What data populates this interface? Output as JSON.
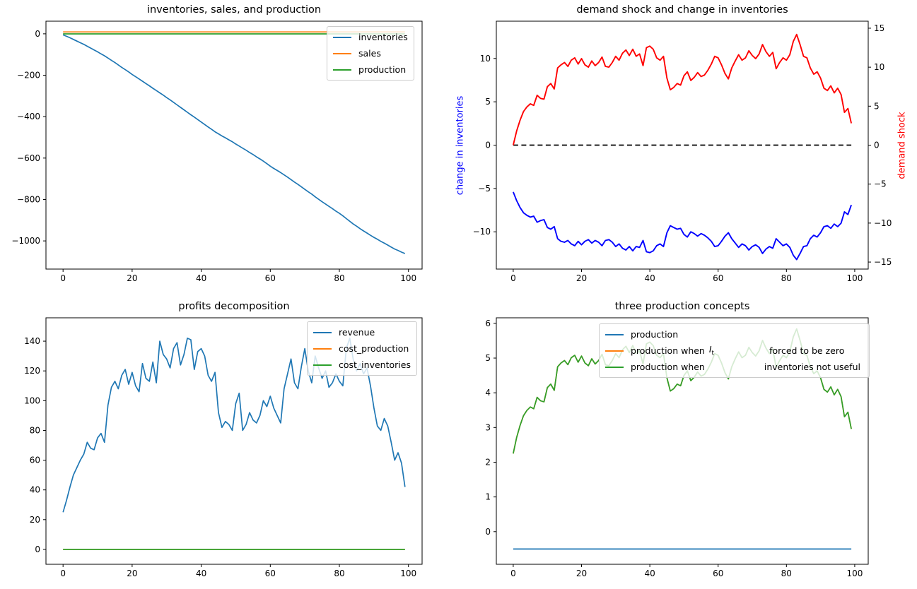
{
  "figure_background": "#ffffff",
  "palette": {
    "mpl_blue": "#1f77b4",
    "mpl_orange": "#ff7f0e",
    "mpl_green": "#2ca02c",
    "pure_red": "#ff0000",
    "pure_blue": "#0000ff",
    "black": "#000000"
  },
  "chart_data": [
    {
      "id": "inventories-sales-production",
      "type": "line",
      "title": "inventories, sales, and production",
      "xlim": [
        -4.95,
        103.95
      ],
      "ylim": [
        -1136,
        61
      ],
      "xticks": [
        0,
        20,
        40,
        60,
        80,
        100
      ],
      "yticks": [
        0,
        -200,
        -400,
        -600,
        -800,
        -1000
      ],
      "legend_position": "upper right",
      "legend": [
        {
          "label": "inventories",
          "color": "#1f77b4"
        },
        {
          "label": "sales",
          "color": "#ff7f0e"
        },
        {
          "label": "production",
          "color": "#2ca02c"
        }
      ],
      "series": [
        {
          "name": "inventories",
          "color": "#1f77b4",
          "values": [
            -5,
            -12,
            -19,
            -27,
            -35,
            -43,
            -51,
            -60,
            -69,
            -78,
            -87,
            -97,
            -106,
            -117,
            -128,
            -139,
            -150,
            -162,
            -173,
            -184,
            -196,
            -207,
            -218,
            -229,
            -240,
            -251,
            -263,
            -274,
            -285,
            -296,
            -308,
            -319,
            -331,
            -343,
            -355,
            -367,
            -379,
            -391,
            -402,
            -414,
            -426,
            -438,
            -450,
            -461,
            -473,
            -483,
            -493,
            -502,
            -512,
            -521,
            -532,
            -542,
            -552,
            -562,
            -573,
            -583,
            -594,
            -604,
            -615,
            -627,
            -639,
            -650,
            -660,
            -670,
            -681,
            -692,
            -704,
            -716,
            -727,
            -739,
            -751,
            -763,
            -774,
            -787,
            -799,
            -811,
            -822,
            -833,
            -844,
            -856,
            -867,
            -879,
            -892,
            -905,
            -918,
            -929,
            -941,
            -952,
            -962,
            -973,
            -983,
            -992,
            -1002,
            -1011,
            -1020,
            -1030,
            -1039,
            -1046,
            -1054,
            -1061
          ]
        },
        {
          "name": "sales",
          "color": "#ff7f0e",
          "const": 9,
          "n": 100
        },
        {
          "name": "production",
          "color": "#2ca02c",
          "const": -0.5,
          "n": 100
        }
      ]
    },
    {
      "id": "demand-shock-and-change-in-inventories",
      "type": "line",
      "title": "demand shock and change in inventories",
      "xlim": [
        -4.95,
        103.95
      ],
      "xticks": [
        0,
        20,
        40,
        60,
        80,
        100
      ],
      "left_axis": {
        "label": "change in inventories",
        "label_color": "#0000ff",
        "ylim": [
          -14.3,
          14.3
        ],
        "ticks": [
          10,
          5,
          0,
          -5,
          -10
        ]
      },
      "right_axis": {
        "label": "demand shock",
        "label_color": "#ff0000",
        "ylim": [
          -15.9,
          15.9
        ],
        "ticks": [
          15,
          10,
          5,
          0,
          -5,
          -10,
          -15
        ]
      },
      "series": [
        {
          "name": "zero line",
          "color": "#000000",
          "style": "dashed",
          "axis": "left",
          "width": 1.7,
          "const": 0,
          "n": 100
        },
        {
          "name": "demand shock",
          "color": "#ff0000",
          "axis": "right",
          "width": 1.9,
          "values": [
            0,
            1.8,
            3.2,
            4.3,
            4.9,
            5.3,
            5.1,
            6.4,
            6,
            5.9,
            7.5,
            7.9,
            7.2,
            9.9,
            10.3,
            10.6,
            10.1,
            10.9,
            11.2,
            10.4,
            11.1,
            10.3,
            10,
            10.8,
            10.2,
            10.6,
            11.3,
            10.1,
            10,
            10.6,
            11.4,
            10.9,
            11.8,
            12.2,
            11.5,
            12.3,
            11.4,
            11.7,
            10.2,
            12.5,
            12.7,
            12.3,
            11.2,
            10.9,
            11.4,
            8.6,
            7.1,
            7.4,
            7.9,
            7.7,
            8.9,
            9.4,
            8.3,
            8.7,
            9.3,
            8.8,
            9,
            9.6,
            10.4,
            11.4,
            11.2,
            10.3,
            9.2,
            8.5,
            9.9,
            10.8,
            11.6,
            10.9,
            11.2,
            12.1,
            11.5,
            11.1,
            11.7,
            12.9,
            12,
            11.4,
            11.9,
            9.8,
            10.6,
            11.2,
            10.9,
            11.6,
            13.3,
            14.2,
            12.9,
            11.4,
            11.2,
            9.9,
            9.1,
            9.4,
            8.6,
            7.3,
            7,
            7.6,
            6.7,
            7.3,
            6.5,
            4.2,
            4.7,
            2.8
          ]
        },
        {
          "name": "change in inventories",
          "color": "#0000ff",
          "axis": "left",
          "width": 1.9,
          "values": [
            -5.4,
            -6.4,
            -7.2,
            -7.8,
            -8.1,
            -8.3,
            -8.2,
            -8.9,
            -8.7,
            -8.6,
            -9.5,
            -9.7,
            -9.4,
            -10.8,
            -11.1,
            -11.2,
            -11,
            -11.4,
            -11.6,
            -11.1,
            -11.5,
            -11.1,
            -10.9,
            -11.3,
            -11,
            -11.2,
            -11.6,
            -11,
            -10.9,
            -11.2,
            -11.7,
            -11.4,
            -11.9,
            -12.1,
            -11.7,
            -12.2,
            -11.7,
            -11.8,
            -11,
            -12.3,
            -12.4,
            -12.2,
            -11.6,
            -11.4,
            -11.7,
            -10.1,
            -9.3,
            -9.5,
            -9.7,
            -9.6,
            -10.3,
            -10.6,
            -10,
            -10.2,
            -10.5,
            -10.2,
            -10.4,
            -10.7,
            -11.1,
            -11.7,
            -11.6,
            -11.1,
            -10.5,
            -10.1,
            -10.8,
            -11.3,
            -11.8,
            -11.4,
            -11.6,
            -12.1,
            -11.7,
            -11.5,
            -11.8,
            -12.5,
            -12,
            -11.7,
            -11.9,
            -10.8,
            -11.2,
            -11.6,
            -11.4,
            -11.8,
            -12.7,
            -13.2,
            -12.5,
            -11.7,
            -11.6,
            -10.8,
            -10.4,
            -10.6,
            -10.1,
            -9.4,
            -9.3,
            -9.6,
            -9.1,
            -9.4,
            -9,
            -7.7,
            -8,
            -6.9
          ]
        }
      ]
    },
    {
      "id": "profits-decomposition",
      "type": "line",
      "title": "profits decomposition",
      "xlim": [
        -4.95,
        103.95
      ],
      "ylim": [
        -10,
        155.7
      ],
      "xticks": [
        0,
        20,
        40,
        60,
        80,
        100
      ],
      "yticks": [
        0,
        20,
        40,
        60,
        80,
        100,
        120,
        140
      ],
      "legend_position": "upper right",
      "legend": [
        {
          "label": "revenue",
          "color": "#1f77b4"
        },
        {
          "label": "cost_production",
          "color": "#ff7f0e"
        },
        {
          "label": "cost_inventories",
          "color": "#2ca02c"
        }
      ],
      "series": [
        {
          "name": "revenue",
          "color": "#1f77b4",
          "values": [
            25,
            33,
            42,
            50,
            55,
            60,
            64,
            72,
            68,
            67,
            75,
            78,
            72,
            97,
            109,
            113,
            108,
            117,
            121,
            111,
            119,
            110,
            106,
            125,
            115,
            113,
            126,
            112,
            140,
            131,
            128,
            122,
            135,
            139,
            124,
            131,
            142,
            141,
            121,
            133,
            135,
            130,
            117,
            113,
            119,
            92,
            82,
            86,
            84,
            80,
            98,
            105,
            80,
            84,
            92,
            87,
            85,
            90,
            100,
            96,
            103,
            95,
            90,
            85,
            108,
            118,
            128,
            112,
            108,
            123,
            135,
            120,
            112,
            130,
            122,
            115,
            120,
            109,
            112,
            118,
            113,
            110,
            135,
            142,
            128,
            120,
            125,
            118,
            122,
            110,
            95,
            83,
            80,
            88,
            83,
            72,
            60,
            65,
            58,
            42
          ]
        },
        {
          "name": "cost_production",
          "color": "#ff7f0e",
          "const": 0,
          "n": 100
        },
        {
          "name": "cost_inventories",
          "color": "#2ca02c",
          "const": 0,
          "n": 100
        }
      ]
    },
    {
      "id": "three-production-concepts",
      "type": "line",
      "title": "three production concepts",
      "xlim": [
        -4.95,
        103.95
      ],
      "ylim": [
        -0.94,
        6.16
      ],
      "xticks": [
        0,
        20,
        40,
        60,
        80,
        100
      ],
      "yticks": [
        0,
        1,
        2,
        3,
        4,
        5,
        6
      ],
      "legend_position": "upper center",
      "legend": [
        {
          "label": "production",
          "color": "#1f77b4"
        },
        {
          "pre": "production when",
          "math_var": "I",
          "math_sub": "t",
          "post": "forced to be zero",
          "color": "#ff7f0e"
        },
        {
          "pre": "production when",
          "post": "inventories not useful",
          "color": "#2ca02c"
        }
      ],
      "series": [
        {
          "name": "production",
          "color": "#1f77b4",
          "const": -0.5,
          "n": 100
        },
        {
          "name": "production when I_t forced to be zero",
          "color": "#ff7f0e",
          "values": [
            2.25,
            2.71,
            3.06,
            3.34,
            3.49,
            3.59,
            3.54,
            3.87,
            3.77,
            3.74,
            4.15,
            4.25,
            4.07,
            4.75,
            4.86,
            4.93,
            4.81,
            5.01,
            5.08,
            4.88,
            5.06,
            4.86,
            4.78,
            4.98,
            4.83,
            4.93,
            5.11,
            4.81,
            4.78,
            4.93,
            5.13,
            5.01,
            5.24,
            5.34,
            5.16,
            5.36,
            5.13,
            5.21,
            4.83,
            5.41,
            5.46,
            5.36,
            5.08,
            5.01,
            5.13,
            4.43,
            4.05,
            4.12,
            4.25,
            4.2,
            4.5,
            4.63,
            4.35,
            4.45,
            4.6,
            4.48,
            4.53,
            4.68,
            4.88,
            5.13,
            5.08,
            4.86,
            4.58,
            4.4,
            4.75,
            4.98,
            5.18,
            5.01,
            5.08,
            5.31,
            5.16,
            5.06,
            5.21,
            5.51,
            5.29,
            5.13,
            5.26,
            4.73,
            4.93,
            5.08,
            5.01,
            5.18,
            5.61,
            5.84,
            5.51,
            5.13,
            5.08,
            4.75,
            4.55,
            4.63,
            4.43,
            4.1,
            4.02,
            4.17,
            3.94,
            4.1,
            3.89,
            3.31,
            3.44,
            2.96
          ]
        },
        {
          "name": "production when inventories not useful",
          "color": "#2ca02c",
          "values": [
            2.25,
            2.71,
            3.06,
            3.34,
            3.49,
            3.59,
            3.54,
            3.87,
            3.77,
            3.74,
            4.15,
            4.25,
            4.07,
            4.75,
            4.86,
            4.93,
            4.81,
            5.01,
            5.08,
            4.88,
            5.06,
            4.86,
            4.78,
            4.98,
            4.83,
            4.93,
            5.11,
            4.81,
            4.78,
            4.93,
            5.13,
            5.01,
            5.24,
            5.34,
            5.16,
            5.36,
            5.13,
            5.21,
            4.83,
            5.41,
            5.46,
            5.36,
            5.08,
            5.01,
            5.13,
            4.43,
            4.05,
            4.12,
            4.25,
            4.2,
            4.5,
            4.63,
            4.35,
            4.45,
            4.6,
            4.48,
            4.53,
            4.68,
            4.88,
            5.13,
            5.08,
            4.86,
            4.58,
            4.4,
            4.75,
            4.98,
            5.18,
            5.01,
            5.08,
            5.31,
            5.16,
            5.06,
            5.21,
            5.51,
            5.29,
            5.13,
            5.26,
            4.73,
            4.93,
            5.08,
            5.01,
            5.18,
            5.61,
            5.84,
            5.51,
            5.13,
            5.08,
            4.75,
            4.55,
            4.63,
            4.43,
            4.1,
            4.02,
            4.17,
            3.94,
            4.1,
            3.89,
            3.31,
            3.44,
            2.96
          ]
        }
      ]
    }
  ]
}
